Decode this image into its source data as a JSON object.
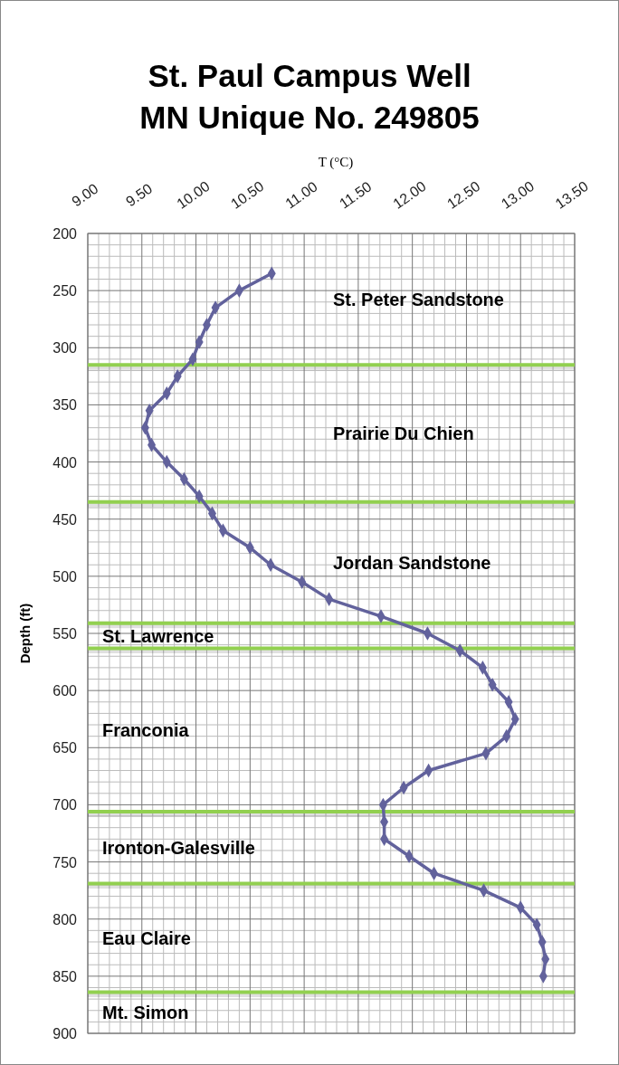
{
  "chart_data": {
    "type": "line",
    "title": "St. Paul Campus Well\nMN Unique No. 249805",
    "xlabel": "T (°C)",
    "ylabel": "Depth (ft)",
    "xlim": [
      9,
      13.5
    ],
    "xticks": [
      {
        "value": 9,
        "label": "9.00"
      },
      {
        "value": 9.5,
        "label": "9.50"
      },
      {
        "value": 10,
        "label": "10.00"
      },
      {
        "value": 10.5,
        "label": "10.50"
      },
      {
        "value": 11,
        "label": "11.00"
      },
      {
        "value": 11.5,
        "label": "11.50"
      },
      {
        "value": 12,
        "label": "12.00"
      },
      {
        "value": 12.5,
        "label": "12.50"
      },
      {
        "value": 13,
        "label": "13.00"
      },
      {
        "value": 13.5,
        "label": "13.50"
      }
    ],
    "ylim": [
      900,
      200
    ],
    "yticks": [
      200,
      250,
      300,
      350,
      400,
      450,
      500,
      550,
      600,
      650,
      700,
      750,
      800,
      850,
      900
    ],
    "grid": true,
    "marker": "diamond",
    "line_style": "solid",
    "series": [
      {
        "color": "#62629c",
        "x": [
          10.7,
          10.4,
          10.18,
          10.1,
          10.03,
          9.97,
          9.83,
          9.73,
          9.57,
          9.53,
          9.59,
          9.73,
          9.89,
          10.03,
          10.15,
          10.25,
          10.5,
          10.69,
          10.98,
          11.23,
          11.71,
          12.14,
          12.44,
          12.65,
          12.74,
          12.89,
          12.95,
          12.87,
          12.68,
          12.15,
          11.92,
          11.73,
          11.74,
          11.74,
          11.97,
          12.2,
          12.66,
          13.0,
          13.15,
          13.2,
          13.23,
          13.21
        ],
        "values": [
          235,
          250,
          265,
          280,
          295,
          310,
          325,
          340,
          355,
          370,
          385,
          400,
          415,
          430,
          445,
          460,
          475,
          490,
          505,
          520,
          535,
          550,
          565,
          580,
          595,
          610,
          625,
          640,
          655,
          670,
          685,
          700,
          715,
          730,
          745,
          760,
          775,
          790,
          805,
          820,
          835,
          850
        ]
      }
    ],
    "ref_lines": [
      {
        "axis": "y",
        "value": 315,
        "color": "#92d050"
      },
      {
        "axis": "y",
        "value": 435,
        "color": "#92d050"
      },
      {
        "axis": "y",
        "value": 541,
        "color": "#92d050"
      },
      {
        "axis": "y",
        "value": 563,
        "color": "#92d050"
      },
      {
        "axis": "y",
        "value": 706,
        "color": "#92d050"
      },
      {
        "axis": "y",
        "value": 769,
        "color": "#92d050"
      },
      {
        "axis": "y",
        "value": 864,
        "color": "#92d050"
      }
    ],
    "annotations": [
      "St. Peter Sandstone",
      "Prairie Du Chien",
      "Jordan Sandstone",
      "St. Lawrence",
      "Franconia",
      "Ironton-Galesville",
      "Eau Claire",
      "Mt. Simon"
    ]
  }
}
